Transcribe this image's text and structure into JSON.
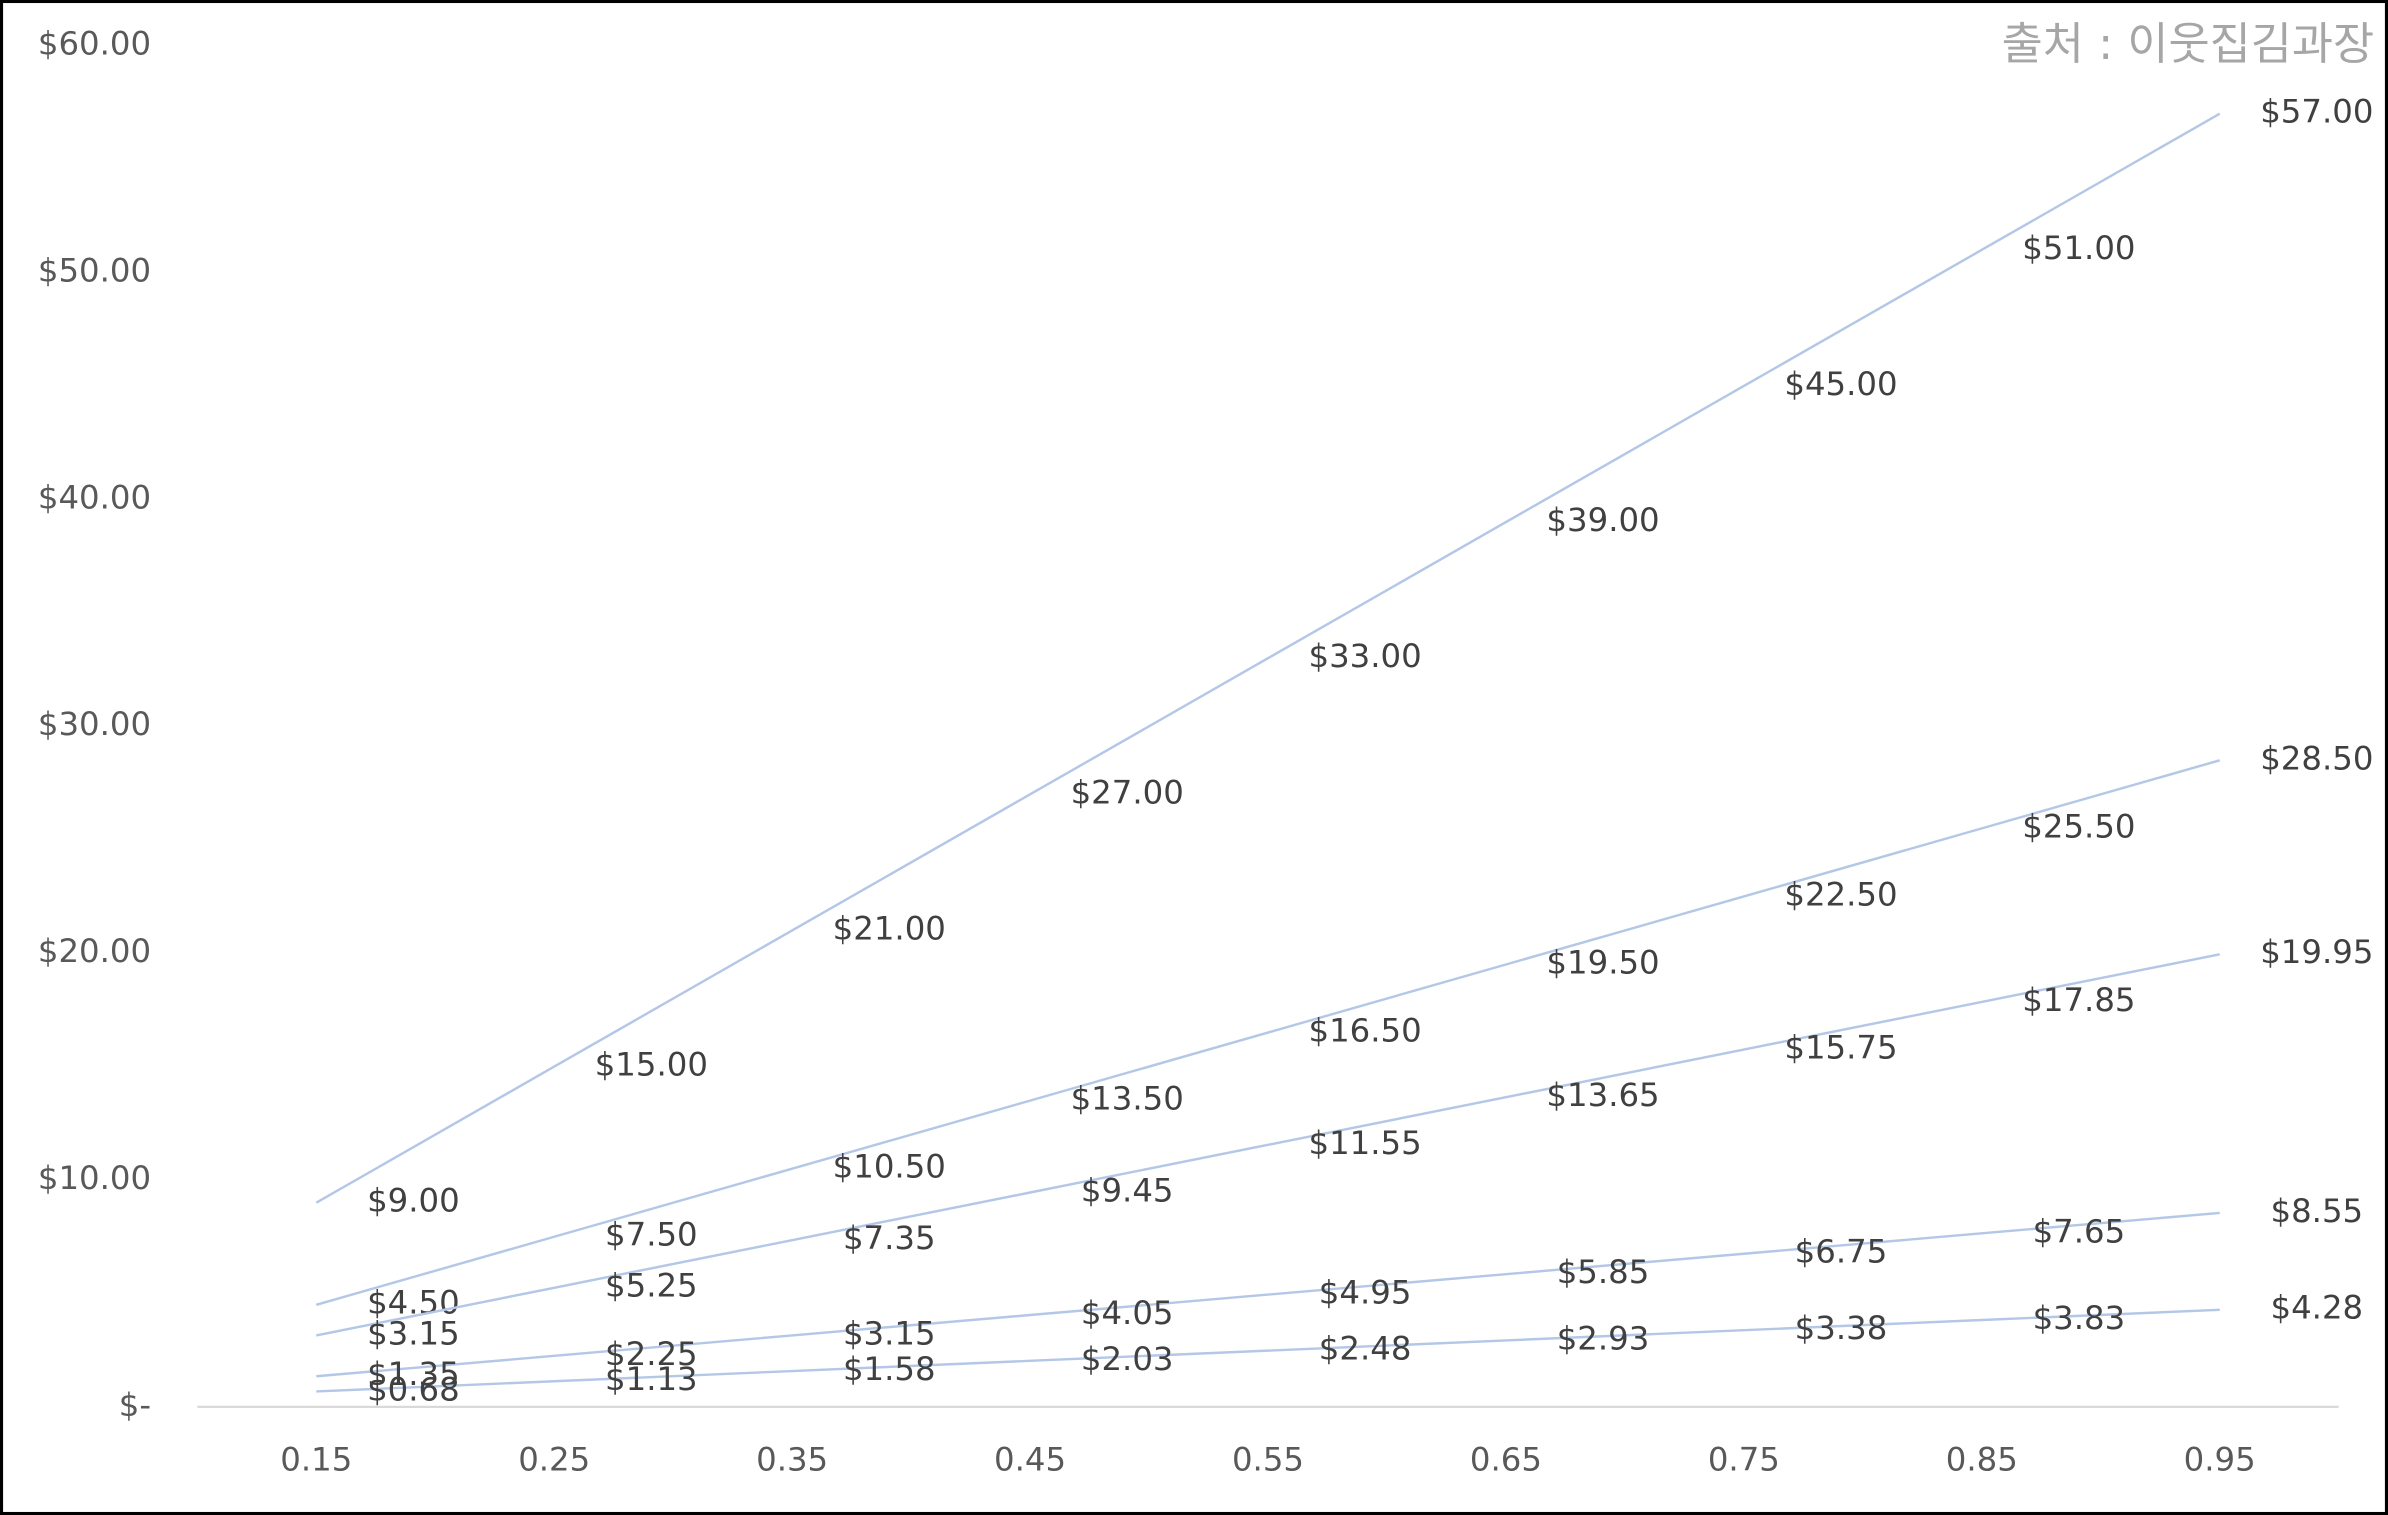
{
  "chart_data": {
    "type": "line",
    "annotation": "출처 : 이웃집김과장",
    "categories": [
      "0.15",
      "0.25",
      "0.35",
      "0.45",
      "0.55",
      "0.65",
      "0.75",
      "0.85",
      "0.95"
    ],
    "series": [
      {
        "color": "#b4c7e7",
        "values": [
          9,
          15,
          21,
          27,
          33,
          39,
          45,
          51,
          57
        ],
        "value_labels": [
          "$9.00",
          "$15.00",
          "$21.00",
          "$27.00",
          "$33.00",
          "$39.00",
          "$45.00",
          "$51.00",
          "$57.00"
        ]
      },
      {
        "color": "#b4c7e7",
        "values": [
          4.5,
          7.5,
          10.5,
          13.5,
          16.5,
          19.5,
          22.5,
          25.5,
          28.5
        ],
        "value_labels": [
          "$4.50",
          "$7.50",
          "$10.50",
          "$13.50",
          "$16.50",
          "$19.50",
          "$22.50",
          "$25.50",
          "$28.50"
        ]
      },
      {
        "color": "#b4c7e7",
        "values": [
          3.15,
          5.25,
          7.35,
          9.45,
          11.55,
          13.65,
          15.75,
          17.85,
          19.95
        ],
        "value_labels": [
          "$3.15",
          "$5.25",
          "$7.35",
          "$9.45",
          "$11.55",
          "$13.65",
          "$15.75",
          "$17.85",
          "$19.95"
        ]
      },
      {
        "color": "#b4c7e7",
        "values": [
          1.35,
          2.25,
          3.15,
          4.05,
          4.95,
          5.85,
          6.75,
          7.65,
          8.55
        ],
        "value_labels": [
          "$1.35",
          "$2.25",
          "$3.15",
          "$4.05",
          "$4.95",
          "$5.85",
          "$6.75",
          "$7.65",
          "$8.55"
        ]
      },
      {
        "color": "#b4c7e7",
        "values": [
          0.68,
          1.13,
          1.58,
          2.03,
          2.48,
          2.93,
          3.38,
          3.83,
          4.28
        ],
        "value_labels": [
          "$0.68",
          "$1.13",
          "$1.58",
          "$2.03",
          "$2.48",
          "$2.93",
          "$3.38",
          "$3.83",
          "$4.28"
        ]
      }
    ],
    "ylim": [
      0,
      60
    ],
    "yticks": [
      {
        "value": 0,
        "label": "$-"
      },
      {
        "value": 10,
        "label": "$10.00"
      },
      {
        "value": 20,
        "label": "$20.00"
      },
      {
        "value": 30,
        "label": "$30.00"
      },
      {
        "value": 40,
        "label": "$40.00"
      },
      {
        "value": 50,
        "label": "$50.00"
      },
      {
        "value": 60,
        "label": "$60.00"
      }
    ],
    "grid": false
  }
}
